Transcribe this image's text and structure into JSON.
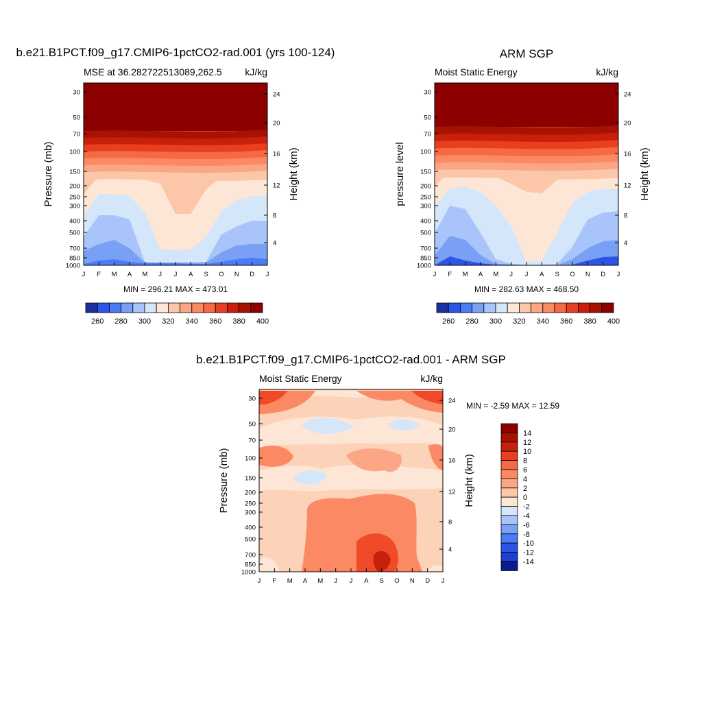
{
  "months": [
    "J",
    "F",
    "M",
    "A",
    "M",
    "J",
    "J",
    "A",
    "S",
    "O",
    "N",
    "D",
    "J"
  ],
  "charts": [
    {
      "type": "contour",
      "title": "b.e21.B1PCT.f09_g17.CMIP6-1pctCO2-rad.001 (yrs 100-124)",
      "left_label": "MSE at 36.282722513089,262.5",
      "right_label": "kJ/kg",
      "ylabel": "Pressure (mb)",
      "ylabel_right": "Height (km)",
      "pressure_ticks": [
        "30",
        "50",
        "70",
        "100",
        "150",
        "200",
        "250",
        "300",
        "400",
        "500",
        "700",
        "850",
        "1000"
      ],
      "height_ticks": [
        "24",
        "20",
        "16",
        "12",
        "8",
        "4"
      ],
      "stats": "MIN = 296.21 MAX = 473.01",
      "colorbar_labels": [
        "260",
        "280",
        "300",
        "320",
        "340",
        "360",
        "380",
        "400"
      ],
      "boundaries_ymid": [
        [
          385,
          380,
          378,
          382,
          384,
          384,
          384,
          385,
          385,
          382,
          378,
          376,
          378
        ],
        [
          366,
          356,
          350,
          362,
          383,
          383,
          383,
          383,
          383,
          368,
          358,
          356,
          356
        ],
        [
          345,
          314,
          314,
          320,
          382,
          383,
          383,
          383,
          382,
          342,
          330,
          322,
          322
        ],
        [
          314,
          283,
          283,
          286,
          310,
          363,
          365,
          364,
          345,
          308,
          292,
          286,
          286
        ],
        [
          283,
          257,
          256,
          258,
          262,
          268,
          312,
          312,
          276,
          258,
          254,
          254,
          254
        ],
        [
          257,
          233,
          233,
          234,
          235,
          236,
          237,
          237,
          235,
          234,
          233,
          233,
          233
        ],
        [
          233,
          207,
          206,
          205,
          205,
          205,
          206,
          206,
          207,
          205,
          205,
          204,
          204
        ],
        [
          207,
          193,
          192,
          191,
          191,
          191,
          192,
          193,
          194,
          192,
          191,
          190,
          190
        ]
      ]
    },
    {
      "type": "contour",
      "title": "ARM SGP",
      "left_label": "Moist Static Energy",
      "right_label": "kJ/kg",
      "ylabel": "pressure level",
      "ylabel_right": "Height (km)",
      "pressure_ticks": [
        "30",
        "50",
        "70",
        "100",
        "150",
        "200",
        "250",
        "300",
        "400",
        "500",
        "700",
        "850",
        "1000"
      ],
      "height_ticks": [
        "24",
        "20",
        "16",
        "12",
        "8",
        "4"
      ],
      "stats": "MIN = 282.63 MAX = 468.50",
      "colorbar_labels": [
        "260",
        "280",
        "300",
        "320",
        "340",
        "360",
        "380",
        "400"
      ],
      "boundaries_ymid": [
        [
          387,
          374,
          380,
          384,
          386,
          386,
          387,
          387,
          387,
          386,
          380,
          375,
          374
        ],
        [
          372,
          344,
          350,
          372,
          385,
          386,
          387,
          387,
          387,
          378,
          362,
          352,
          350
        ],
        [
          340,
          300,
          305,
          340,
          378,
          385,
          386,
          386,
          385,
          360,
          320,
          310,
          308
        ],
        [
          300,
          275,
          272,
          280,
          300,
          330,
          382,
          380,
          340,
          296,
          280,
          275,
          276
        ],
        [
          272,
          250,
          248,
          252,
          258,
          268,
          280,
          282,
          262,
          252,
          248,
          248,
          250
        ],
        [
          250,
          232,
          230,
          231,
          232,
          233,
          234,
          234,
          233,
          232,
          231,
          230,
          230
        ],
        [
          232,
          205,
          204,
          203,
          203,
          204,
          205,
          205,
          205,
          204,
          203,
          202,
          202
        ],
        [
          205,
          188,
          186,
          186,
          186,
          187,
          188,
          190,
          191,
          189,
          187,
          186,
          186
        ]
      ]
    },
    {
      "type": "contour",
      "title": "b.e21.B1PCT.f09_g17.CMIP6-1pctCO2-rad.001 - ARM SGP",
      "left_label": "Moist Static Energy",
      "right_label": "kJ/kg",
      "ylabel": "Pressure (mb)",
      "ylabel_right": "Height (km)",
      "pressure_ticks": [
        "30",
        "50",
        "70",
        "100",
        "150",
        "200",
        "250",
        "300",
        "400",
        "500",
        "700",
        "850",
        "1000"
      ],
      "height_ticks": [
        "24",
        "20",
        "16",
        "12",
        "8",
        "4"
      ],
      "stats": "MIN =  -2.59 MAX =  12.59",
      "colorbar_labels": [
        "14",
        "12",
        "10",
        "8",
        "6",
        "4",
        "2",
        "0",
        "-2",
        "-4",
        "-6",
        "-8",
        "-10",
        "-12",
        "-14"
      ]
    }
  ]
}
